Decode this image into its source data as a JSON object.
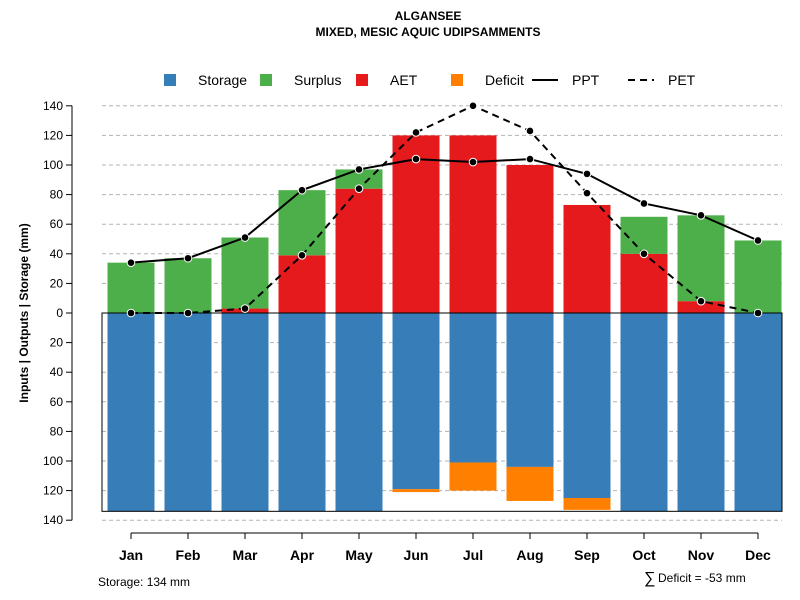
{
  "chart_data": {
    "type": "bar",
    "title": "ALGANSEE",
    "subtitle": "MIXED, MESIC AQUIC UDIPSAMMENTS",
    "ylabel": "Inputs | Outputs | Storage    (mm)",
    "categories": [
      "Jan",
      "Feb",
      "Mar",
      "Apr",
      "May",
      "Jun",
      "Jul",
      "Aug",
      "Sep",
      "Oct",
      "Nov",
      "Dec"
    ],
    "ylim": [
      -140,
      140
    ],
    "yticks": [
      140,
      120,
      100,
      80,
      60,
      40,
      20,
      0,
      -20,
      -40,
      -60,
      -80,
      -100,
      -120,
      -140
    ],
    "ytick_labels": [
      "140",
      "120",
      "100",
      "80",
      "60",
      "40",
      "20",
      "0",
      "20",
      "40",
      "60",
      "80",
      "100",
      "120",
      "140"
    ],
    "grid": "horizontal dashed",
    "legend_position": "top",
    "legend": [
      {
        "label": "Storage",
        "kind": "square",
        "color": "#377EB8"
      },
      {
        "label": "Surplus",
        "kind": "square",
        "color": "#4DAF4A"
      },
      {
        "label": "AET",
        "kind": "square",
        "color": "#E41A1C"
      },
      {
        "label": "Deficit",
        "kind": "square",
        "color": "#FF7F00"
      },
      {
        "label": "PPT",
        "kind": "solid-line",
        "color": "#000000"
      },
      {
        "label": "PET",
        "kind": "dashed-line",
        "color": "#000000"
      }
    ],
    "series": [
      {
        "name": "AET",
        "color": "#E41A1C",
        "values": [
          0,
          0,
          3,
          39,
          84,
          120,
          120,
          100,
          73,
          40,
          8,
          0
        ]
      },
      {
        "name": "Surplus",
        "color": "#4DAF4A",
        "values": [
          34,
          37,
          48,
          44,
          13,
          0,
          0,
          0,
          0,
          25,
          58,
          49
        ]
      },
      {
        "name": "Storage",
        "color": "#377EB8",
        "values": [
          -134,
          -134,
          -134,
          -134,
          -134,
          -119,
          -101,
          -104,
          -125,
          -134,
          -134,
          -134
        ]
      },
      {
        "name": "Deficit",
        "color": "#FF7F00",
        "values": [
          0,
          0,
          0,
          0,
          0,
          -2,
          -19,
          -23,
          -8,
          0,
          0,
          0
        ]
      },
      {
        "name": "PPT",
        "color": "#000000",
        "style": "solid",
        "values": [
          34,
          37,
          51,
          83,
          97,
          104,
          102,
          104,
          94,
          74,
          66,
          49
        ]
      },
      {
        "name": "PET",
        "color": "#000000",
        "style": "dashed",
        "values": [
          0,
          0,
          3,
          39,
          84,
          122,
          140,
          123,
          81,
          40,
          8,
          0
        ]
      }
    ],
    "storage_note": "Storage: 134 mm",
    "deficit_symbol": "∑",
    "deficit_note": "Deficit = -53 mm"
  }
}
